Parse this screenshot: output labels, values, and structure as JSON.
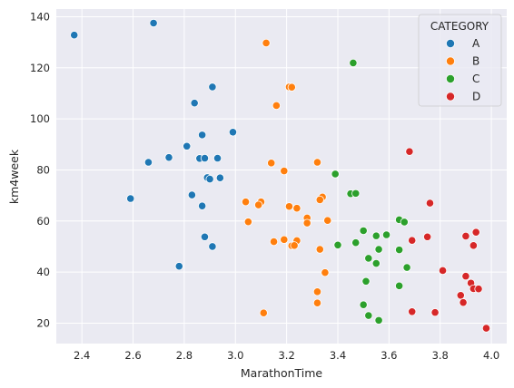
{
  "chart_data": {
    "type": "scatter",
    "xlabel": "MarathonTime",
    "ylabel": "km4week",
    "xlim": [
      2.3,
      4.06
    ],
    "ylim": [
      12,
      143
    ],
    "xticks": [
      "2.4",
      "2.6",
      "2.8",
      "3.0",
      "3.2",
      "3.4",
      "3.6",
      "3.8",
      "4.0"
    ],
    "yticks": [
      "20",
      "40",
      "60",
      "80",
      "100",
      "120",
      "140"
    ],
    "grid": true,
    "legend": {
      "title": "CATEGORY",
      "placement": "top-right"
    },
    "series": [
      {
        "name": "A",
        "color": "#1f77b4",
        "points": [
          [
            2.37,
            132.8
          ],
          [
            2.68,
            137.5
          ],
          [
            2.91,
            112.5
          ],
          [
            2.84,
            106.2
          ],
          [
            2.99,
            94.8
          ],
          [
            2.87,
            93.7
          ],
          [
            2.81,
            89.3
          ],
          [
            2.66,
            83.0
          ],
          [
            2.74,
            84.9
          ],
          [
            2.86,
            84.5
          ],
          [
            2.88,
            84.6
          ],
          [
            2.93,
            84.6
          ],
          [
            2.89,
            77.0
          ],
          [
            2.9,
            76.4
          ],
          [
            2.94,
            76.9
          ],
          [
            2.59,
            68.8
          ],
          [
            2.83,
            70.2
          ],
          [
            2.87,
            65.9
          ],
          [
            2.88,
            53.8
          ],
          [
            2.91,
            50.0
          ],
          [
            2.78,
            42.3
          ]
        ]
      },
      {
        "name": "B",
        "color": "#ff7f0e",
        "points": [
          [
            3.12,
            129.7
          ],
          [
            3.21,
            112.5
          ],
          [
            3.22,
            112.4
          ],
          [
            3.16,
            105.2
          ],
          [
            3.14,
            82.7
          ],
          [
            3.32,
            83.0
          ],
          [
            3.19,
            79.6
          ],
          [
            3.34,
            69.4
          ],
          [
            3.04,
            67.5
          ],
          [
            3.1,
            67.5
          ],
          [
            3.09,
            66.3
          ],
          [
            3.21,
            65.7
          ],
          [
            3.24,
            65.0
          ],
          [
            3.33,
            68.3
          ],
          [
            3.28,
            61.2
          ],
          [
            3.05,
            59.7
          ],
          [
            3.36,
            60.2
          ],
          [
            3.28,
            59.2
          ],
          [
            3.19,
            52.7
          ],
          [
            3.24,
            52.3
          ],
          [
            3.15,
            51.9
          ],
          [
            3.22,
            50.3
          ],
          [
            3.23,
            50.4
          ],
          [
            3.33,
            48.9
          ],
          [
            3.35,
            39.8
          ],
          [
            3.32,
            32.3
          ],
          [
            3.32,
            27.9
          ],
          [
            3.11,
            24.0
          ]
        ]
      },
      {
        "name": "C",
        "color": "#2ca02c",
        "points": [
          [
            3.46,
            121.9
          ],
          [
            3.39,
            78.4
          ],
          [
            3.45,
            70.7
          ],
          [
            3.47,
            70.8
          ],
          [
            3.64,
            60.5
          ],
          [
            3.66,
            59.6
          ],
          [
            3.5,
            56.2
          ],
          [
            3.59,
            54.6
          ],
          [
            3.55,
            54.2
          ],
          [
            3.4,
            50.6
          ],
          [
            3.47,
            51.5
          ],
          [
            3.56,
            48.9
          ],
          [
            3.64,
            48.7
          ],
          [
            3.52,
            45.4
          ],
          [
            3.55,
            43.4
          ],
          [
            3.67,
            41.8
          ],
          [
            3.51,
            36.4
          ],
          [
            3.64,
            34.6
          ],
          [
            3.5,
            27.2
          ],
          [
            3.52,
            23.0
          ],
          [
            3.56,
            21.1
          ]
        ]
      },
      {
        "name": "D",
        "color": "#d62728",
        "points": [
          [
            3.68,
            87.2
          ],
          [
            3.76,
            67.0
          ],
          [
            3.69,
            52.4
          ],
          [
            3.75,
            53.8
          ],
          [
            3.9,
            54.1
          ],
          [
            3.94,
            55.6
          ],
          [
            3.93,
            50.4
          ],
          [
            3.81,
            40.6
          ],
          [
            3.9,
            38.4
          ],
          [
            3.92,
            35.7
          ],
          [
            3.93,
            33.5
          ],
          [
            3.95,
            33.4
          ],
          [
            3.88,
            30.9
          ],
          [
            3.89,
            28.1
          ],
          [
            3.69,
            24.5
          ],
          [
            3.78,
            24.2
          ],
          [
            3.98,
            18.0
          ]
        ]
      }
    ]
  }
}
